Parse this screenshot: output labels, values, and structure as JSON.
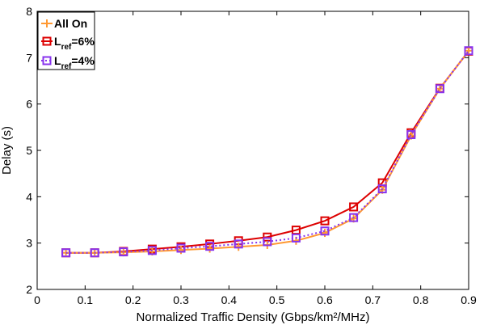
{
  "chart_data": {
    "type": "line",
    "title": "",
    "xlabel": "Normalized Traffic Density (Gbps/km²/MHz)",
    "ylabel": "Delay (s)",
    "xlim": [
      0,
      0.9
    ],
    "ylim": [
      2,
      8
    ],
    "x_ticks": [
      "0",
      "0.1",
      "0.2",
      "0.3",
      "0.4",
      "0.5",
      "0.6",
      "0.7",
      "0.8",
      "0.9"
    ],
    "y_ticks": [
      "2",
      "3",
      "4",
      "5",
      "6",
      "7",
      "8"
    ],
    "grid": false,
    "legend_position": "top-left",
    "x": [
      0.06,
      0.12,
      0.18,
      0.24,
      0.3,
      0.36,
      0.42,
      0.48,
      0.54,
      0.6,
      0.66,
      0.72,
      0.78,
      0.84,
      0.9
    ],
    "series": [
      {
        "name": "All On",
        "marker": "plus",
        "color": "#ff9933",
        "line_style": "solid",
        "values": [
          2.79,
          2.79,
          2.8,
          2.82,
          2.85,
          2.88,
          2.92,
          2.96,
          3.05,
          3.22,
          3.53,
          4.15,
          5.32,
          6.33,
          7.15
        ]
      },
      {
        "name": "L_ref=6%",
        "name_main": "L",
        "name_sub": "ref",
        "name_rest": "=6%",
        "marker": "square",
        "color": "#dd0000",
        "line_style": "solid",
        "values": [
          2.79,
          2.79,
          2.82,
          2.87,
          2.92,
          2.98,
          3.05,
          3.13,
          3.28,
          3.48,
          3.78,
          4.3,
          5.38,
          6.34,
          7.14
        ]
      },
      {
        "name": "L_ref=4%",
        "name_main": "L",
        "name_sub": "ref",
        "name_rest": "=4%",
        "marker": "square",
        "color": "#8833ee",
        "line_style": "dotted",
        "values": [
          2.79,
          2.79,
          2.81,
          2.84,
          2.89,
          2.93,
          2.98,
          3.03,
          3.11,
          3.26,
          3.55,
          4.17,
          5.34,
          6.33,
          7.15
        ]
      }
    ]
  }
}
